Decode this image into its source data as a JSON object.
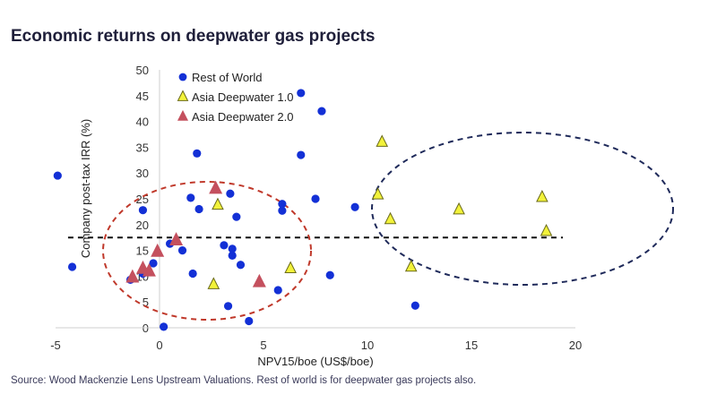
{
  "title": "Economic returns on deepwater gas projects",
  "source": "Source: Wood Mackenzie Lens Upstream Valuations. Rest of world is for deepwater gas projects also.",
  "colors": {
    "rest_of_world": "#1330d6",
    "asia_dw1": "#f2f23a",
    "asia_dw2": "#c4505e",
    "red_ellipse": "#c0392b",
    "navy_ellipse": "#1f2a5a"
  },
  "chart_data": {
    "type": "scatter",
    "xlabel": "NPV15/boe (US$/boe)",
    "ylabel": "Company post-tax IRR (%)",
    "xlim": [
      -5,
      20
    ],
    "ylim": [
      0,
      50
    ],
    "xticks": [
      "-5",
      "0",
      "5",
      "10",
      "15",
      "20"
    ],
    "yticks": [
      "0",
      "5",
      "10",
      "15",
      "20",
      "25",
      "30",
      "35",
      "40",
      "45",
      "50"
    ],
    "legend_position": "top-left",
    "reference_line_y": 17.5,
    "series": [
      {
        "name": "Rest of World",
        "marker": "circle",
        "points": [
          [
            -4.9,
            29.5
          ],
          [
            -4.2,
            11.8
          ],
          [
            -1.4,
            9.3
          ],
          [
            -0.8,
            22.8
          ],
          [
            -0.8,
            10.5
          ],
          [
            -0.3,
            12.5
          ],
          [
            0.2,
            0.2
          ],
          [
            0.5,
            16.3
          ],
          [
            1.1,
            15.0
          ],
          [
            1.5,
            25.2
          ],
          [
            1.6,
            10.5
          ],
          [
            1.8,
            33.8
          ],
          [
            1.9,
            23.0
          ],
          [
            3.1,
            16.0
          ],
          [
            3.3,
            4.2
          ],
          [
            3.4,
            26.0
          ],
          [
            3.5,
            14.0
          ],
          [
            3.5,
            15.3
          ],
          [
            3.7,
            21.5
          ],
          [
            3.9,
            12.2
          ],
          [
            4.3,
            1.3
          ],
          [
            5.7,
            7.3
          ],
          [
            5.9,
            24.0
          ],
          [
            5.9,
            22.7
          ],
          [
            6.8,
            45.5
          ],
          [
            6.8,
            33.5
          ],
          [
            7.5,
            25.0
          ],
          [
            7.8,
            42.0
          ],
          [
            8.2,
            10.2
          ],
          [
            9.4,
            23.4
          ],
          [
            12.3,
            4.3
          ]
        ]
      },
      {
        "name": "Asia Deepwater 1.0",
        "marker": "triangle",
        "points": [
          [
            2.8,
            23.8
          ],
          [
            2.6,
            8.4
          ],
          [
            6.3,
            11.5
          ],
          [
            10.5,
            25.8
          ],
          [
            10.7,
            36.0
          ],
          [
            11.1,
            21.0
          ],
          [
            12.1,
            11.8
          ],
          [
            14.4,
            22.9
          ],
          [
            18.4,
            25.3
          ],
          [
            18.6,
            18.7
          ]
        ]
      },
      {
        "name": "Asia Deepwater 2.0",
        "marker": "triangle",
        "points": [
          [
            -1.3,
            9.8
          ],
          [
            -0.8,
            11.5
          ],
          [
            -0.5,
            11.0
          ],
          [
            -0.1,
            14.8
          ],
          [
            0.8,
            17.0
          ],
          [
            2.7,
            27.0
          ],
          [
            4.8,
            8.9
          ]
        ]
      }
    ]
  }
}
